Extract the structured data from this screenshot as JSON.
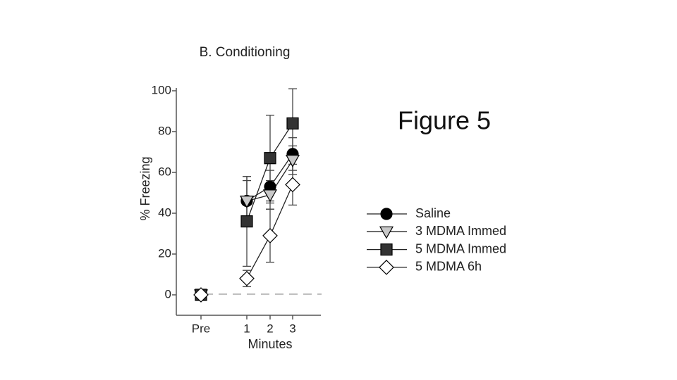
{
  "slide_title": "Figure 5",
  "chart_data": {
    "type": "line",
    "title": "B. Conditioning",
    "x_label": "Minutes",
    "y_label": "% Freezing",
    "categories": [
      "Pre",
      "1",
      "2",
      "3"
    ],
    "ylim": [
      -10,
      100
    ],
    "yticks": [
      0,
      20,
      40,
      60,
      80,
      100
    ],
    "series": [
      {
        "name": "Saline",
        "marker": "circle",
        "color": "#000000",
        "values": [
          0,
          46,
          53,
          69
        ],
        "errors": [
          0,
          10,
          8,
          8
        ]
      },
      {
        "name": "3 MDMA Immed",
        "marker": "triangle-down",
        "color": "#c8c8c8",
        "values": [
          0,
          46,
          49,
          66
        ],
        "errors": [
          0,
          12,
          7,
          7
        ]
      },
      {
        "name": "5 MDMA Immed",
        "marker": "square",
        "color": "#333333",
        "values": [
          0,
          36,
          67,
          84
        ],
        "errors": [
          0,
          22,
          21,
          17
        ]
      },
      {
        "name": "5 MDMA 6h",
        "marker": "diamond",
        "color": "#ffffff",
        "values": [
          0,
          8,
          29,
          54
        ],
        "errors": [
          0,
          4,
          13,
          10
        ]
      }
    ]
  }
}
